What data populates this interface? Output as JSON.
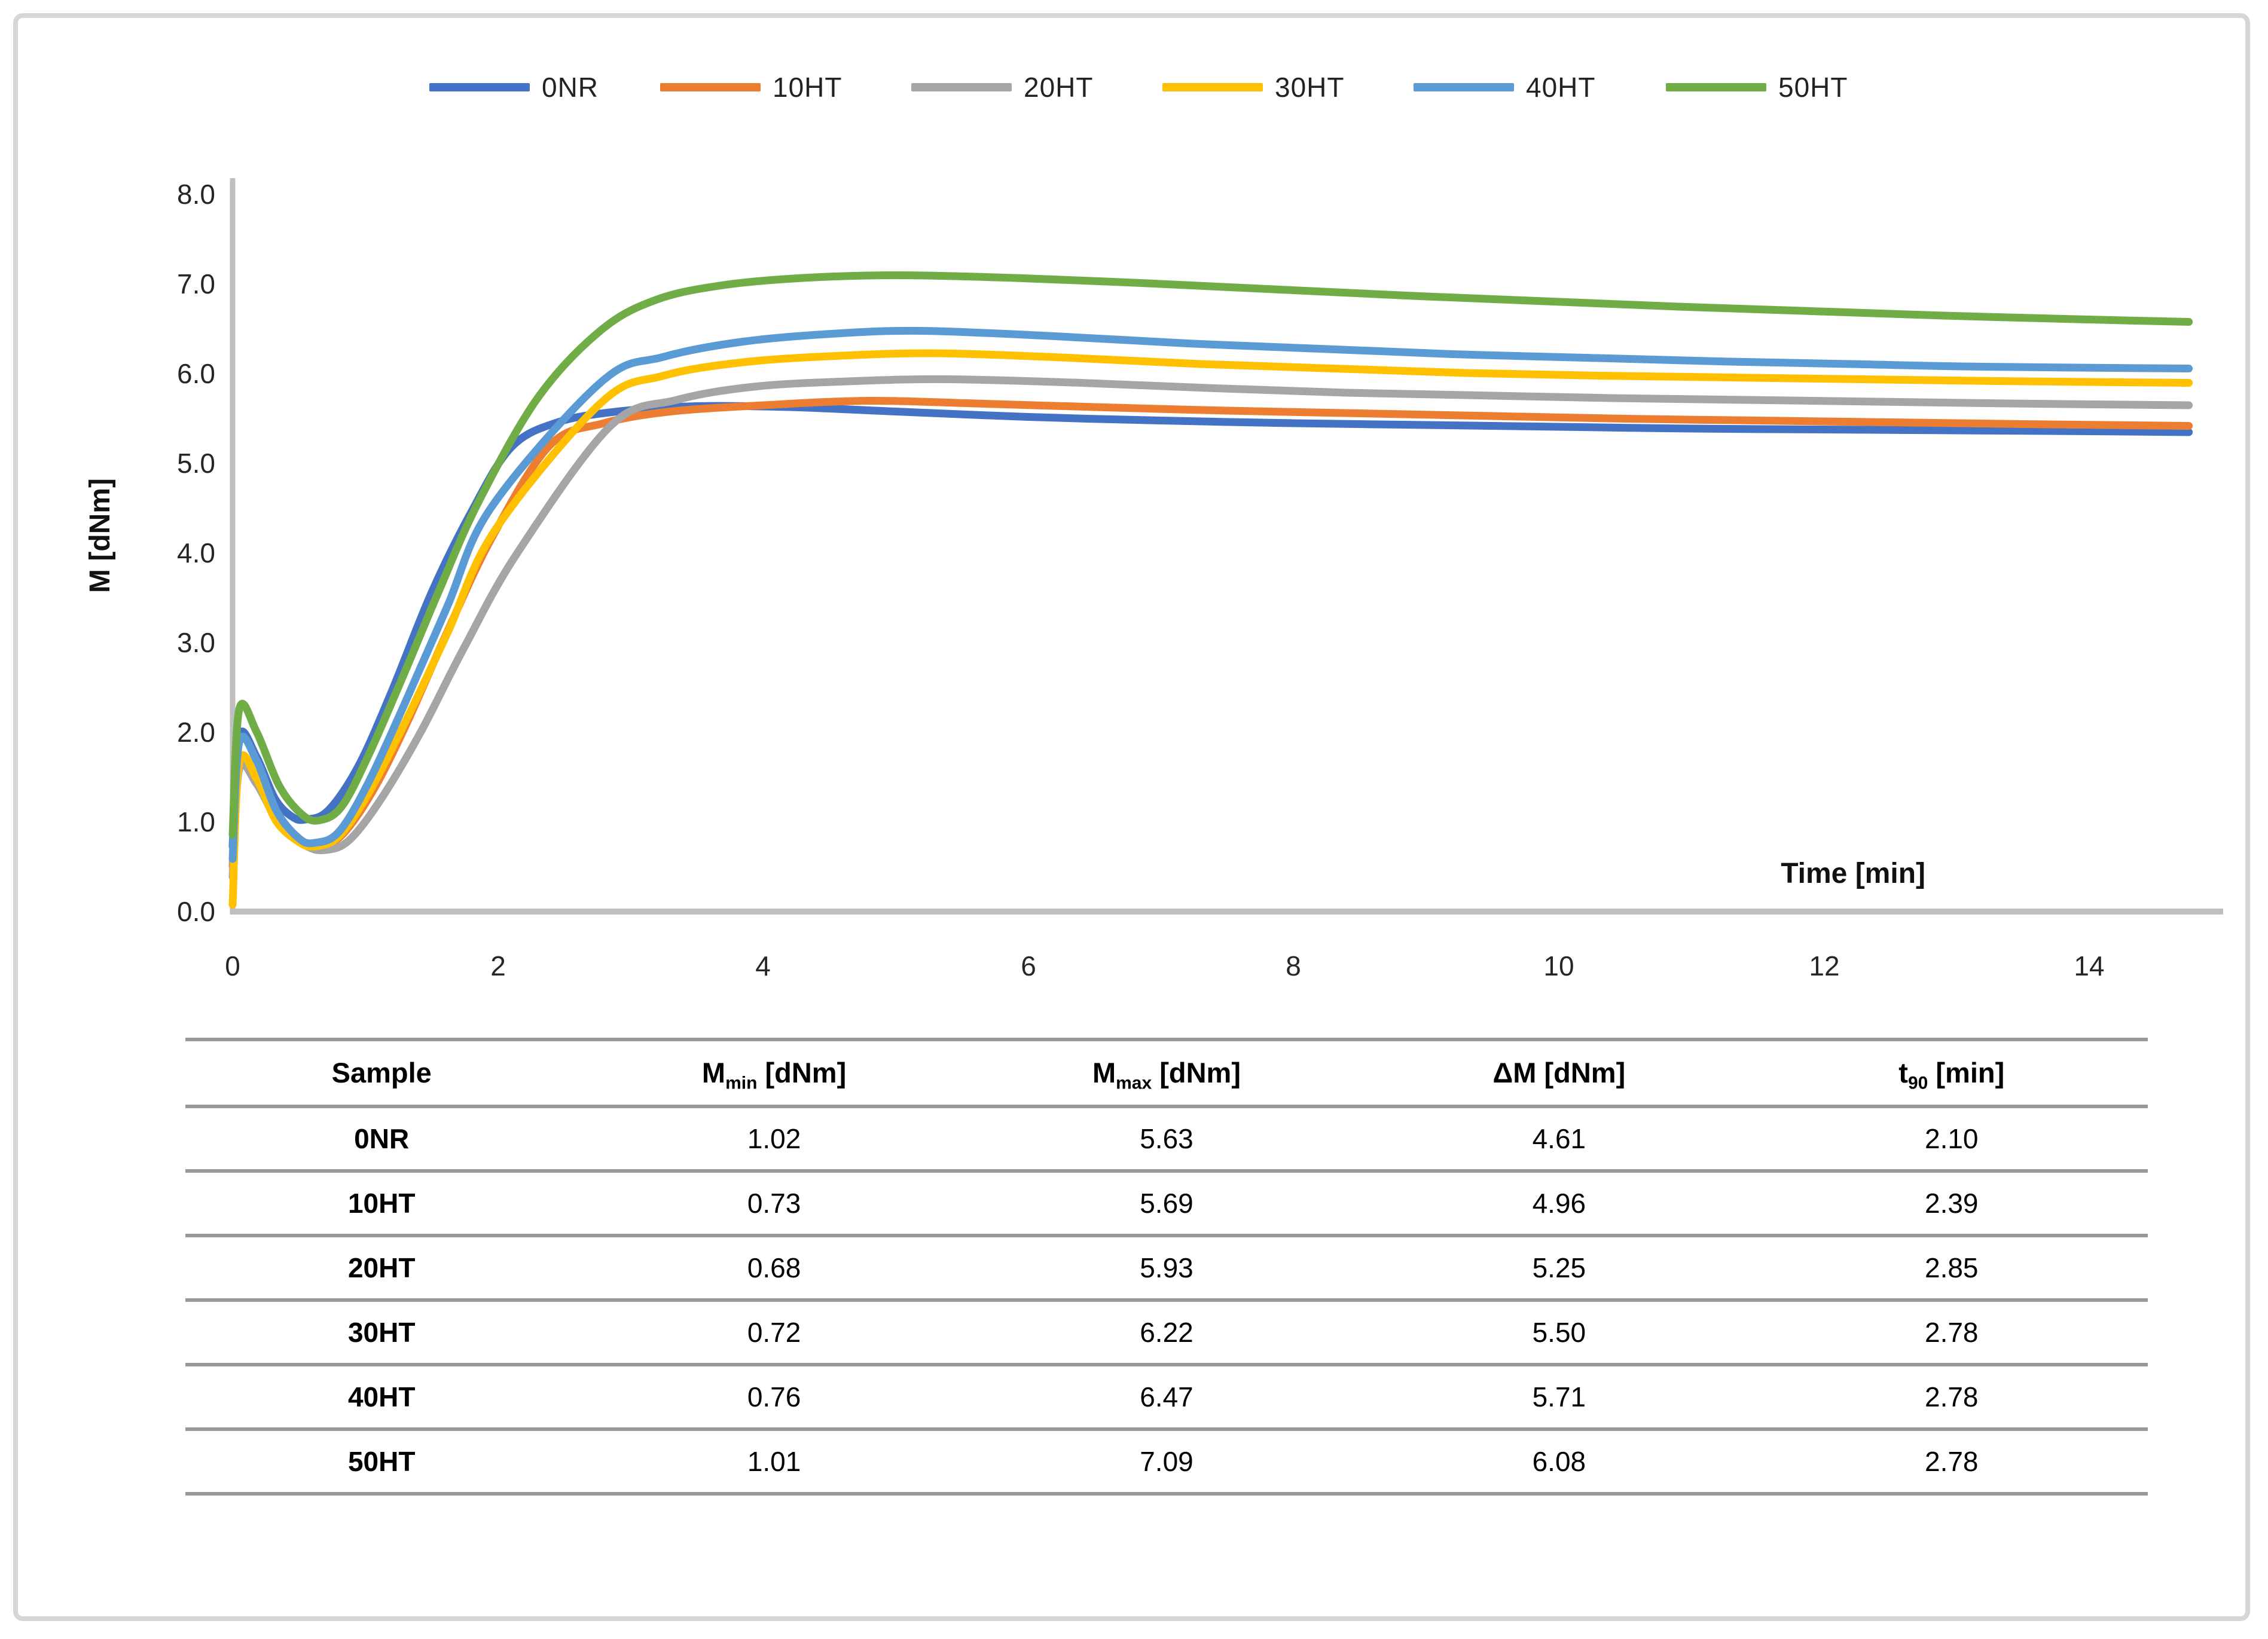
{
  "legend": {
    "items": [
      {
        "label": "0NR",
        "color": "#4472C4"
      },
      {
        "label": "10HT",
        "color": "#ED7D31"
      },
      {
        "label": "20HT",
        "color": "#A5A5A5"
      },
      {
        "label": "30HT",
        "color": "#FFC000"
      },
      {
        "label": "40HT",
        "color": "#5B9BD5"
      },
      {
        "label": "50HT",
        "color": "#70AD47"
      }
    ]
  },
  "chart": {
    "y_axis_title": "M [dNm]",
    "x_axis_title": "Time [min]",
    "axis_color": "#BFBFBF",
    "y_ticks": [
      "8.0",
      "7.0",
      "6.0",
      "5.0",
      "4.0",
      "3.0",
      "2.0",
      "1.0",
      "0.0"
    ],
    "x_ticks": [
      "0",
      "2",
      "4",
      "6",
      "8",
      "10",
      "12",
      "14"
    ]
  },
  "chart_data": {
    "type": "line",
    "title": "",
    "xlabel": "Time [min]",
    "ylabel": "M [dNm]",
    "xlim": [
      0,
      15
    ],
    "ylim": [
      0.0,
      8.0
    ],
    "x_tick_values": [
      0,
      2,
      4,
      6,
      8,
      10,
      12,
      14
    ],
    "y_tick_step": 1.0,
    "grid": false,
    "legend_position": "top",
    "description": "Cure (vulcanization) curves: torque M vs time for six samples; initial loading spike, minimum torque, sigmoidal rise to maximum, then slow reversion",
    "series": [
      {
        "name": "0NR",
        "color": "#4472C4",
        "points": [
          [
            0,
            0.72
          ],
          [
            0.05,
            1.95
          ],
          [
            0.18,
            1.72
          ],
          [
            0.32,
            1.25
          ],
          [
            0.45,
            1.05
          ],
          [
            0.55,
            1.02
          ],
          [
            0.72,
            1.12
          ],
          [
            0.95,
            1.62
          ],
          [
            1.2,
            2.45
          ],
          [
            1.5,
            3.55
          ],
          [
            1.8,
            4.45
          ],
          [
            2.1,
            5.17
          ],
          [
            2.45,
            5.45
          ],
          [
            2.9,
            5.57
          ],
          [
            3.5,
            5.63
          ],
          [
            4.2,
            5.62
          ],
          [
            5,
            5.57
          ],
          [
            6,
            5.51
          ],
          [
            7,
            5.47
          ],
          [
            8,
            5.44
          ],
          [
            9,
            5.42
          ],
          [
            10,
            5.4
          ],
          [
            11,
            5.38
          ],
          [
            12,
            5.37
          ],
          [
            13,
            5.36
          ],
          [
            14,
            5.35
          ],
          [
            14.75,
            5.34
          ]
        ]
      },
      {
        "name": "10HT",
        "color": "#ED7D31",
        "points": [
          [
            0,
            0.5
          ],
          [
            0.05,
            1.68
          ],
          [
            0.18,
            1.48
          ],
          [
            0.35,
            1.02
          ],
          [
            0.52,
            0.78
          ],
          [
            0.65,
            0.73
          ],
          [
            0.82,
            0.84
          ],
          [
            1.05,
            1.32
          ],
          [
            1.3,
            2.05
          ],
          [
            1.6,
            3.05
          ],
          [
            1.95,
            4.15
          ],
          [
            2.39,
            5.19
          ],
          [
            2.8,
            5.44
          ],
          [
            3.3,
            5.57
          ],
          [
            4,
            5.64
          ],
          [
            4.8,
            5.69
          ],
          [
            5.6,
            5.66
          ],
          [
            6.5,
            5.62
          ],
          [
            7.5,
            5.58
          ],
          [
            8.5,
            5.55
          ],
          [
            9.5,
            5.52
          ],
          [
            10.5,
            5.49
          ],
          [
            11.5,
            5.47
          ],
          [
            12.5,
            5.45
          ],
          [
            13.5,
            5.43
          ],
          [
            14.75,
            5.41
          ]
        ]
      },
      {
        "name": "20HT",
        "color": "#A5A5A5",
        "points": [
          [
            0,
            0.38
          ],
          [
            0.05,
            1.58
          ],
          [
            0.18,
            1.42
          ],
          [
            0.35,
            0.98
          ],
          [
            0.55,
            0.73
          ],
          [
            0.7,
            0.68
          ],
          [
            0.88,
            0.79
          ],
          [
            1.12,
            1.25
          ],
          [
            1.42,
            2.0
          ],
          [
            1.75,
            2.95
          ],
          [
            2.15,
            4.0
          ],
          [
            2.85,
            5.41
          ],
          [
            3.35,
            5.7
          ],
          [
            3.95,
            5.85
          ],
          [
            4.7,
            5.91
          ],
          [
            5.4,
            5.93
          ],
          [
            6.4,
            5.89
          ],
          [
            7.4,
            5.83
          ],
          [
            8.4,
            5.78
          ],
          [
            9.4,
            5.75
          ],
          [
            10.4,
            5.72
          ],
          [
            11.4,
            5.7
          ],
          [
            12.4,
            5.68
          ],
          [
            13.4,
            5.66
          ],
          [
            14.75,
            5.64
          ]
        ]
      },
      {
        "name": "30HT",
        "color": "#FFC000",
        "points": [
          [
            0,
            0.07
          ],
          [
            0.05,
            1.65
          ],
          [
            0.18,
            1.48
          ],
          [
            0.33,
            1.0
          ],
          [
            0.5,
            0.77
          ],
          [
            0.62,
            0.72
          ],
          [
            0.8,
            0.83
          ],
          [
            1.02,
            1.3
          ],
          [
            1.3,
            2.1
          ],
          [
            1.62,
            3.1
          ],
          [
            1.98,
            4.25
          ],
          [
            2.78,
            5.67
          ],
          [
            3.25,
            5.97
          ],
          [
            3.85,
            6.12
          ],
          [
            4.55,
            6.19
          ],
          [
            5.3,
            6.22
          ],
          [
            6.3,
            6.17
          ],
          [
            7.3,
            6.1
          ],
          [
            8.3,
            6.05
          ],
          [
            9.3,
            6.0
          ],
          [
            10.3,
            5.97
          ],
          [
            11.3,
            5.95
          ],
          [
            12.3,
            5.93
          ],
          [
            13.3,
            5.91
          ],
          [
            14.75,
            5.89
          ]
        ]
      },
      {
        "name": "40HT",
        "color": "#5B9BD5",
        "points": [
          [
            0,
            0.58
          ],
          [
            0.05,
            1.88
          ],
          [
            0.18,
            1.68
          ],
          [
            0.33,
            1.12
          ],
          [
            0.5,
            0.81
          ],
          [
            0.62,
            0.76
          ],
          [
            0.8,
            0.88
          ],
          [
            1.02,
            1.42
          ],
          [
            1.3,
            2.32
          ],
          [
            1.62,
            3.4
          ],
          [
            1.95,
            4.5
          ],
          [
            2.78,
            5.9
          ],
          [
            3.25,
            6.18
          ],
          [
            3.85,
            6.35
          ],
          [
            4.55,
            6.44
          ],
          [
            5.2,
            6.47
          ],
          [
            6.2,
            6.41
          ],
          [
            7.2,
            6.33
          ],
          [
            8.2,
            6.27
          ],
          [
            9.2,
            6.21
          ],
          [
            10.2,
            6.17
          ],
          [
            11.2,
            6.13
          ],
          [
            12.2,
            6.1
          ],
          [
            13.2,
            6.07
          ],
          [
            14.75,
            6.05
          ]
        ]
      },
      {
        "name": "50HT",
        "color": "#70AD47",
        "points": [
          [
            0,
            0.85
          ],
          [
            0.05,
            2.25
          ],
          [
            0.18,
            2.0
          ],
          [
            0.35,
            1.4
          ],
          [
            0.52,
            1.08
          ],
          [
            0.65,
            1.01
          ],
          [
            0.82,
            1.16
          ],
          [
            1.02,
            1.72
          ],
          [
            1.28,
            2.6
          ],
          [
            1.55,
            3.55
          ],
          [
            1.85,
            4.55
          ],
          [
            2.3,
            5.72
          ],
          [
            2.78,
            6.48
          ],
          [
            3.2,
            6.82
          ],
          [
            3.7,
            6.98
          ],
          [
            4.3,
            7.06
          ],
          [
            5,
            7.09
          ],
          [
            5.9,
            7.06
          ],
          [
            6.9,
            7.0
          ],
          [
            7.9,
            6.93
          ],
          [
            8.9,
            6.86
          ],
          [
            9.9,
            6.8
          ],
          [
            10.9,
            6.74
          ],
          [
            11.9,
            6.69
          ],
          [
            12.9,
            6.64
          ],
          [
            13.9,
            6.6
          ],
          [
            14.75,
            6.57
          ]
        ]
      }
    ]
  },
  "table": {
    "columns": [
      {
        "pre": "Sample",
        "sub": "",
        "post": ""
      },
      {
        "pre": "M",
        "sub": "min",
        "post": " [dNm]"
      },
      {
        "pre": "M",
        "sub": "max",
        "post": " [dNm]"
      },
      {
        "pre": "ΔM [dNm]",
        "sub": "",
        "post": ""
      },
      {
        "pre": "t",
        "sub": "90",
        "post": " [min]"
      }
    ],
    "rows": [
      [
        "0NR",
        "1.02",
        "5.63",
        "4.61",
        "2.10"
      ],
      [
        "10HT",
        "0.73",
        "5.69",
        "4.96",
        "2.39"
      ],
      [
        "20HT",
        "0.68",
        "5.93",
        "5.25",
        "2.85"
      ],
      [
        "30HT",
        "0.72",
        "6.22",
        "5.50",
        "2.78"
      ],
      [
        "40HT",
        "0.76",
        "6.47",
        "5.71",
        "2.78"
      ],
      [
        "50HT",
        "1.01",
        "7.09",
        "6.08",
        "2.78"
      ]
    ]
  }
}
